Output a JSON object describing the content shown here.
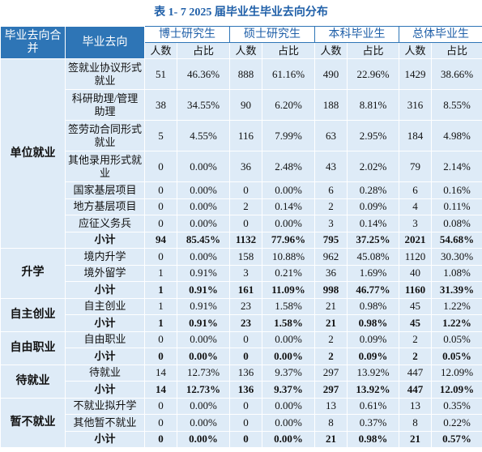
{
  "title": "表 1- 7 2025 届毕业生毕业去向分布",
  "header": {
    "columns": [
      "毕业去向合并",
      "毕业去向",
      "博士研究生",
      "硕士研究生",
      "本科毕业生",
      "总体毕业生"
    ],
    "subcolumns": [
      "人数",
      "占比",
      "人数",
      "占比",
      "人数",
      "占比",
      "人数",
      "占比"
    ]
  },
  "groups": [
    {
      "name": "单位就业",
      "rows": [
        {
          "label": "签就业协议形式就业",
          "cells": [
            "51",
            "46.36%",
            "888",
            "61.16%",
            "490",
            "22.96%",
            "1429",
            "38.66%"
          ]
        },
        {
          "label": "科研助理/管理助理",
          "cells": [
            "38",
            "34.55%",
            "90",
            "6.20%",
            "188",
            "8.81%",
            "316",
            "8.55%"
          ]
        },
        {
          "label": "签劳动合同形式就业",
          "cells": [
            "5",
            "4.55%",
            "116",
            "7.99%",
            "63",
            "2.95%",
            "184",
            "4.98%"
          ]
        },
        {
          "label": "其他录用形式就业",
          "cells": [
            "0",
            "0.00%",
            "36",
            "2.48%",
            "43",
            "2.02%",
            "79",
            "2.14%"
          ]
        },
        {
          "label": "国家基层项目",
          "cells": [
            "0",
            "0.00%",
            "0",
            "0.00%",
            "6",
            "0.28%",
            "6",
            "0.16%"
          ]
        },
        {
          "label": "地方基层项目",
          "cells": [
            "0",
            "0.00%",
            "2",
            "0.14%",
            "2",
            "0.09%",
            "4",
            "0.11%"
          ]
        },
        {
          "label": "应征义务兵",
          "cells": [
            "0",
            "0.00%",
            "0",
            "0.00%",
            "3",
            "0.14%",
            "3",
            "0.08%"
          ]
        },
        {
          "label": "小计",
          "cells": [
            "94",
            "85.45%",
            "1132",
            "77.96%",
            "795",
            "37.25%",
            "2021",
            "54.68%"
          ]
        }
      ]
    },
    {
      "name": "升学",
      "rows": [
        {
          "label": "境内升学",
          "cells": [
            "0",
            "0.00%",
            "158",
            "10.88%",
            "962",
            "45.08%",
            "1120",
            "30.30%"
          ]
        },
        {
          "label": "境外留学",
          "cells": [
            "1",
            "0.91%",
            "3",
            "0.21%",
            "36",
            "1.69%",
            "40",
            "1.08%"
          ]
        },
        {
          "label": "小计",
          "cells": [
            "1",
            "0.91%",
            "161",
            "11.09%",
            "998",
            "46.77%",
            "1160",
            "31.39%"
          ]
        }
      ]
    },
    {
      "name": "自主创业",
      "rows": [
        {
          "label": "自主创业",
          "cells": [
            "1",
            "0.91%",
            "23",
            "1.58%",
            "21",
            "0.98%",
            "45",
            "1.22%"
          ]
        },
        {
          "label": "小计",
          "cells": [
            "1",
            "0.91%",
            "23",
            "1.58%",
            "21",
            "0.98%",
            "45",
            "1.22%"
          ]
        }
      ]
    },
    {
      "name": "自由职业",
      "rows": [
        {
          "label": "自由职业",
          "cells": [
            "0",
            "0.00%",
            "0",
            "0.00%",
            "2",
            "0.09%",
            "2",
            "0.05%"
          ]
        },
        {
          "label": "小计",
          "cells": [
            "0",
            "0.00%",
            "0",
            "0.00%",
            "2",
            "0.09%",
            "2",
            "0.05%"
          ]
        }
      ]
    },
    {
      "name": "待就业",
      "rows": [
        {
          "label": "待就业",
          "cells": [
            "14",
            "12.73%",
            "136",
            "9.37%",
            "297",
            "13.92%",
            "447",
            "12.09%"
          ]
        },
        {
          "label": "小计",
          "cells": [
            "14",
            "12.73%",
            "136",
            "9.37%",
            "297",
            "13.92%",
            "447",
            "12.09%"
          ]
        }
      ]
    },
    {
      "name": "暂不就业",
      "rows": [
        {
          "label": "不就业拟升学",
          "cells": [
            "0",
            "0.00%",
            "0",
            "0.00%",
            "13",
            "0.61%",
            "13",
            "0.35%"
          ]
        },
        {
          "label": "其他暂不就业",
          "cells": [
            "0",
            "0.00%",
            "0",
            "0.00%",
            "8",
            "0.37%",
            "8",
            "0.22%"
          ]
        },
        {
          "label": "小计",
          "cells": [
            "0",
            "0.00%",
            "0",
            "0.00%",
            "21",
            "0.98%",
            "21",
            "0.57%"
          ]
        }
      ]
    }
  ]
}
